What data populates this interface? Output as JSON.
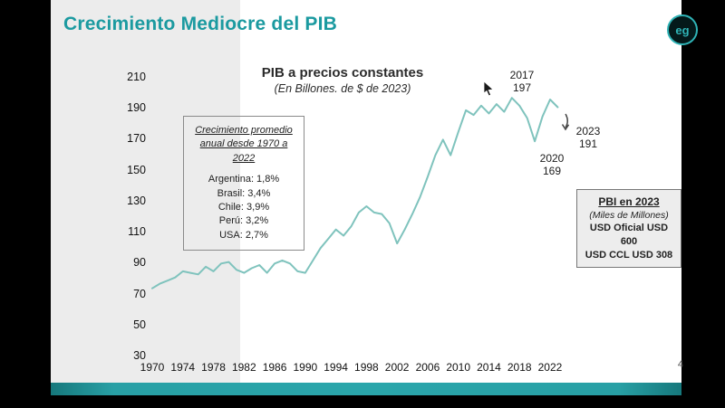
{
  "slide": {
    "title": "Crecimiento Mediocre del PIB",
    "page_number": "4",
    "logo_text": "eg"
  },
  "chart": {
    "title": "PIB a precios constantes",
    "subtitle": "(En Billones. de $ de 2023)"
  },
  "growth_box": {
    "heading_line1": "Crecimiento promedio",
    "heading_line2": "anual desde 1970 a 2022",
    "items": [
      "Argentina: 1,8%",
      "Brasil: 3,4%",
      "Chile: 3,9%",
      "Perú: 3,2%",
      "USA: 2,7%"
    ]
  },
  "pbi_box": {
    "heading": "PBI en 2023",
    "subheading": "(Miles de Millones)",
    "lines": [
      "USD Oficial USD 600",
      "USD CCL USD 308"
    ]
  },
  "annotations": {
    "peak_2017": {
      "year": "2017",
      "value": "197"
    },
    "dip_2020": {
      "year": "2020",
      "value": "169"
    },
    "last_2023": {
      "year": "2023",
      "value": "191"
    }
  },
  "colors": {
    "accent_teal": "#1b9aa0",
    "line_teal": "#7fc3bd"
  },
  "chart_data": {
    "type": "line",
    "title": "PIB a precios constantes",
    "subtitle": "(En Billones. de $ de 2023)",
    "xlabel": "",
    "ylabel": "",
    "ylim": [
      30,
      210
    ],
    "grid": false,
    "legend": false,
    "line_color": "#7fc3bd",
    "yticks": [
      210,
      190,
      170,
      150,
      130,
      110,
      90,
      70,
      50,
      30
    ],
    "xticks": [
      1970,
      1974,
      1978,
      1982,
      1986,
      1990,
      1994,
      1998,
      2002,
      2006,
      2010,
      2014,
      2018,
      2022
    ],
    "x": [
      1970,
      1971,
      1972,
      1973,
      1974,
      1975,
      1976,
      1977,
      1978,
      1979,
      1980,
      1981,
      1982,
      1983,
      1984,
      1985,
      1986,
      1987,
      1988,
      1989,
      1990,
      1991,
      1992,
      1993,
      1994,
      1995,
      1996,
      1997,
      1998,
      1999,
      2000,
      2001,
      2002,
      2003,
      2004,
      2005,
      2006,
      2007,
      2008,
      2009,
      2010,
      2011,
      2012,
      2013,
      2014,
      2015,
      2016,
      2017,
      2018,
      2019,
      2020,
      2021,
      2022,
      2023
    ],
    "values": [
      74,
      77,
      79,
      81,
      85,
      84,
      83,
      88,
      85,
      90,
      91,
      86,
      84,
      87,
      89,
      84,
      90,
      92,
      90,
      85,
      84,
      92,
      100,
      106,
      112,
      108,
      114,
      123,
      127,
      123,
      122,
      116,
      103,
      112,
      122,
      133,
      146,
      160,
      170,
      160,
      175,
      189,
      186,
      192,
      187,
      193,
      188,
      197,
      192,
      184,
      169,
      185,
      196,
      191
    ],
    "annotated_points": [
      {
        "year": 2017,
        "value": 197
      },
      {
        "year": 2020,
        "value": 169
      },
      {
        "year": 2023,
        "value": 191
      }
    ]
  }
}
